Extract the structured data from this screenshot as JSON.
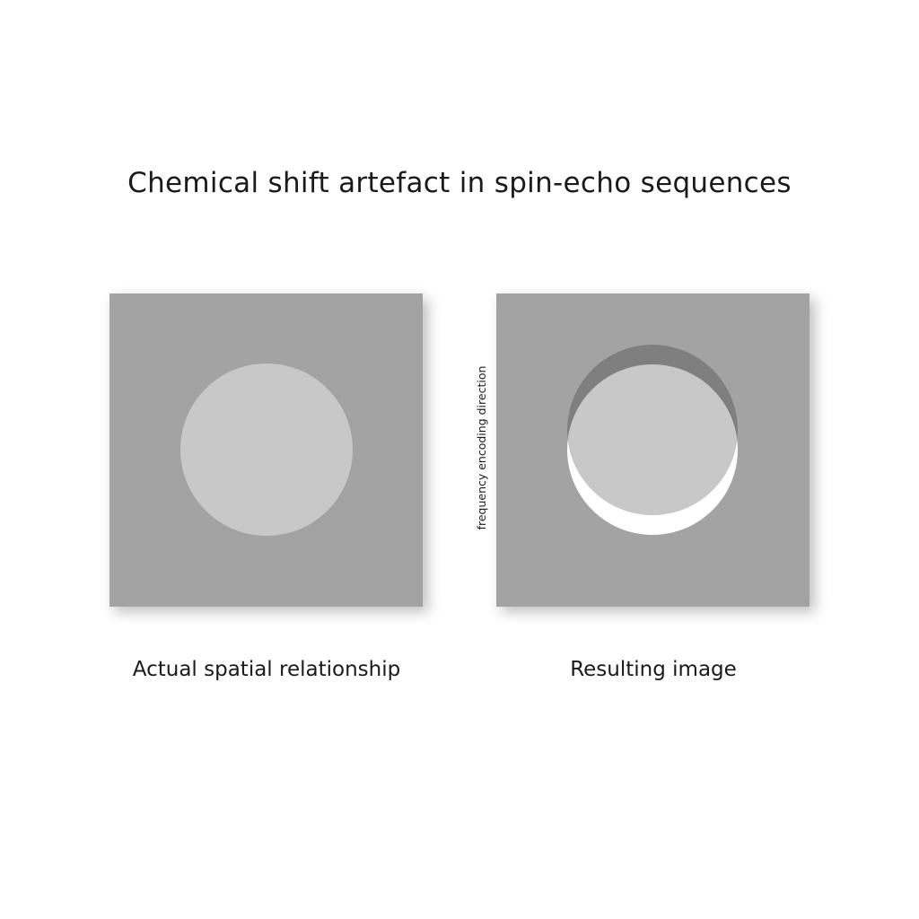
{
  "title": "Chemical shift artefact in spin-echo sequences",
  "axis_label": "frequency encoding direction",
  "panels": [
    {
      "caption": "Actual spatial relationship"
    },
    {
      "caption": "Resulting image"
    }
  ],
  "colors": {
    "background_tissue": "#a3a3a3",
    "fat_tissue": "#c8c8c8",
    "dark_band": "#7f7f7f",
    "bright_band": "#ffffff",
    "text": "#1a1a1a"
  }
}
